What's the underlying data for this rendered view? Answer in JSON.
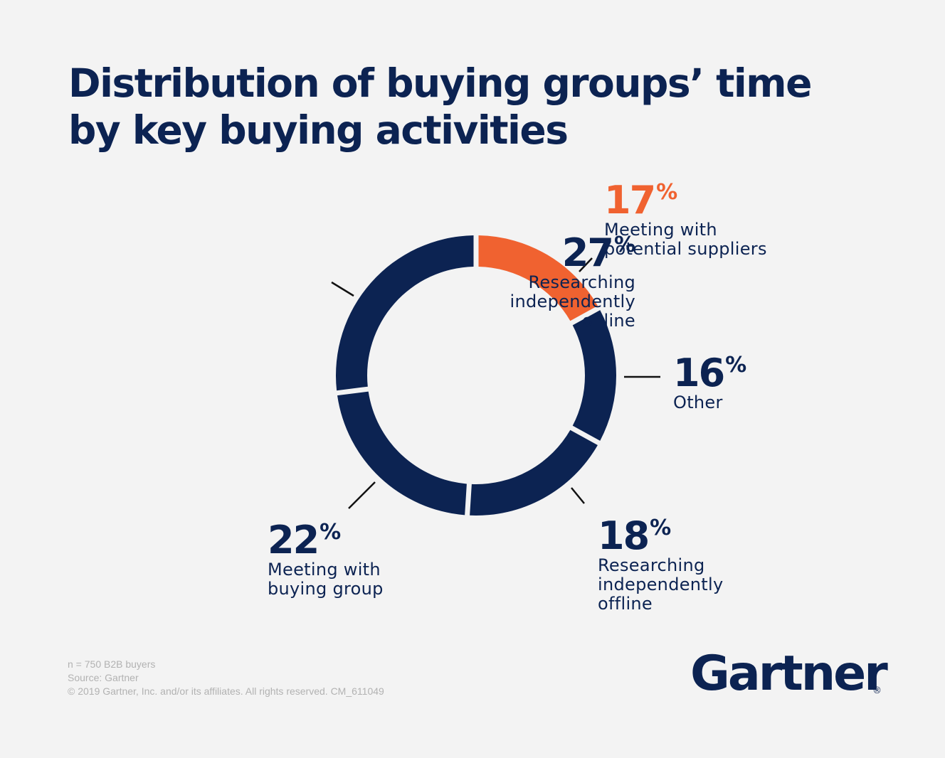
{
  "title_lines": [
    "Distribution of buying groups’ time",
    "by key buying activities"
  ],
  "chart_data": {
    "type": "pie",
    "donut": true,
    "title": "Distribution of buying groups’ time by key buying activities",
    "unit": "%",
    "slices": [
      {
        "label_lines": [
          "Meeting with",
          "potential suppliers"
        ],
        "value": 17,
        "value_text": "17",
        "color": "#f06230"
      },
      {
        "label_lines": [
          "Other"
        ],
        "value": 16,
        "value_text": "16",
        "color": "#0c2352"
      },
      {
        "label_lines": [
          "Researching",
          "independently",
          "offline"
        ],
        "value": 18,
        "value_text": "18",
        "color": "#0c2352"
      },
      {
        "label_lines": [
          "Meeting with",
          "buying group"
        ],
        "value": 22,
        "value_text": "22",
        "color": "#0c2352"
      },
      {
        "label_lines": [
          "Researching",
          "independently",
          "online"
        ],
        "value": 27,
        "value_text": "27",
        "color": "#0c2352"
      }
    ]
  },
  "footer_lines": [
    "n = 750 B2B buyers",
    "Source: Gartner",
    "© 2019 Gartner, Inc. and/or its affiliates. All rights reserved. CM_611049"
  ],
  "logo_text": "Gartner",
  "logo_mark": "®",
  "colors": {
    "navy": "#0c2352",
    "orange": "#f06230",
    "background": "#f3f3f3",
    "footer_text": "#b2b2b2"
  }
}
